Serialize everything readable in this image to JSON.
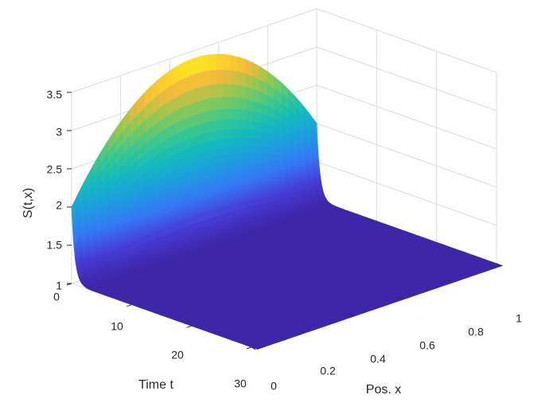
{
  "chart_data": {
    "type": "surface",
    "title": "",
    "xlabel": "Pos. x",
    "ylabel": "Time t",
    "zlabel": "S(t,x)",
    "x_range": [
      0,
      1
    ],
    "t_range": [
      0,
      30
    ],
    "z_range": [
      1,
      3.5
    ],
    "x_ticks": [
      "0",
      "0.2",
      "0.4",
      "0.6",
      "0.8",
      "1"
    ],
    "t_ticks": [
      "0",
      "10",
      "20",
      "30"
    ],
    "z_ticks": [
      "1",
      "1.5",
      "2",
      "2.5",
      "3",
      "3.5"
    ],
    "grid": true,
    "colormap": "parula",
    "surface_description": {
      "initial_profile_at_t0": {
        "x": [
          0,
          0.2,
          0.4,
          0.5,
          0.6,
          0.8,
          1
        ],
        "S": [
          2.0,
          2.92,
          3.3,
          3.35,
          3.3,
          2.92,
          2.0
        ]
      },
      "steady_value": 1.0
    }
  }
}
